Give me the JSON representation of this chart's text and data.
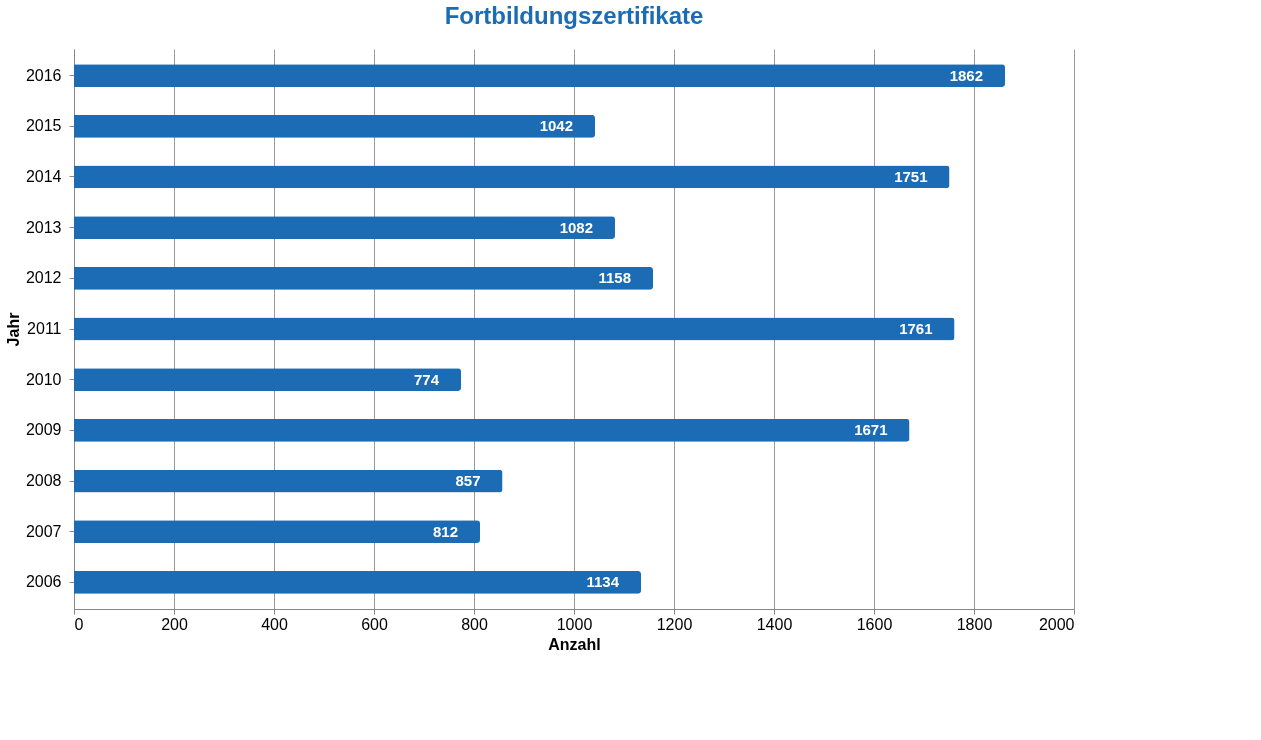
{
  "chart_data": {
    "type": "bar",
    "orientation": "horizontal",
    "title": "Fortbildungszertifikate",
    "xlabel": "Anzahl",
    "ylabel": "Jahr",
    "categories": [
      "2016",
      "2015",
      "2014",
      "2013",
      "2012",
      "2011",
      "2010",
      "2009",
      "2008",
      "2007",
      "2006"
    ],
    "values": [
      1862,
      1042,
      1751,
      1082,
      1158,
      1761,
      774,
      1671,
      857,
      812,
      1134
    ],
    "color": "#1c6cb5",
    "xlim": [
      0,
      2000
    ],
    "xticks": [
      0,
      200,
      400,
      600,
      800,
      1000,
      1200,
      1400,
      1600,
      1800,
      2000
    ],
    "grid": "x",
    "data_labels": true
  }
}
